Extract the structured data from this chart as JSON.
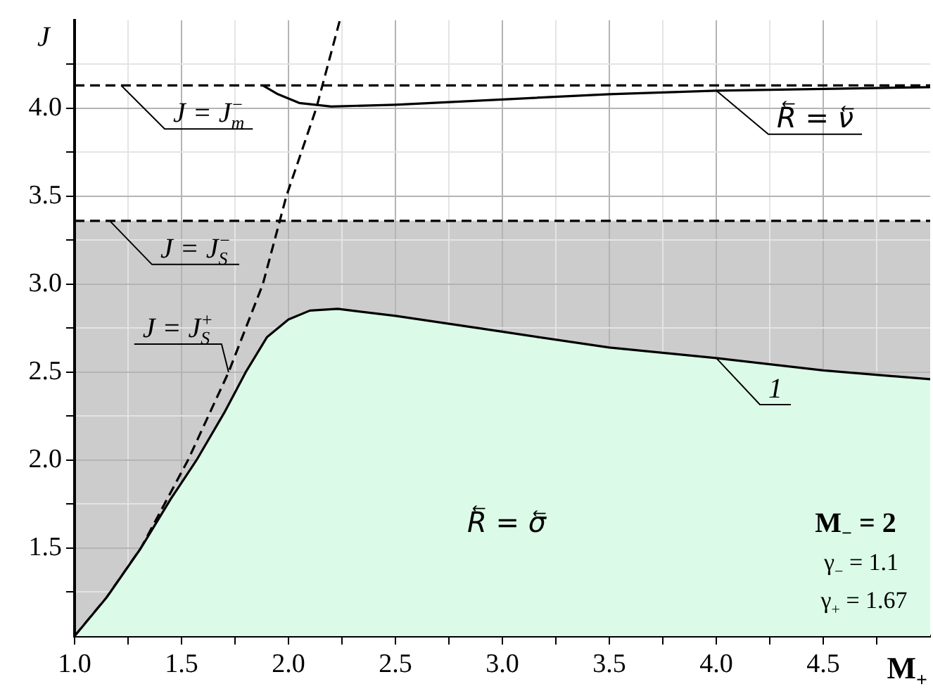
{
  "chart_data": {
    "type": "line",
    "xlabel": "M$_{+}$",
    "ylabel": "J",
    "xlim": [
      1.0,
      5.0
    ],
    "ylim": [
      1.0,
      4.5
    ],
    "xticks": [
      {
        "value": 1,
        "label": "1.0"
      },
      {
        "value": 1.25,
        "label": null
      },
      {
        "value": 1.5,
        "label": "1.5"
      },
      {
        "value": 1.75,
        "label": null
      },
      {
        "value": 2,
        "label": "2.0"
      },
      {
        "value": 2.25,
        "label": null
      },
      {
        "value": 2.5,
        "label": "2.5"
      },
      {
        "value": 2.75,
        "label": null
      },
      {
        "value": 3,
        "label": "3.0"
      },
      {
        "value": 3.25,
        "label": null
      },
      {
        "value": 3.5,
        "label": "3.5"
      },
      {
        "value": 3.75,
        "label": null
      },
      {
        "value": 4,
        "label": "4.0"
      },
      {
        "value": 4.25,
        "label": null
      },
      {
        "value": 4.5,
        "label": "4.5"
      },
      {
        "value": 4.75,
        "label": null
      }
    ],
    "yticks": [
      {
        "value": 1.25,
        "label": null
      },
      {
        "value": 1.5,
        "label": "1.5"
      },
      {
        "value": 1.75,
        "label": null
      },
      {
        "value": 2,
        "label": "2.0"
      },
      {
        "value": 2.25,
        "label": null
      },
      {
        "value": 2.5,
        "label": "2.5"
      },
      {
        "value": 2.75,
        "label": null
      },
      {
        "value": 3,
        "label": "3.0"
      },
      {
        "value": 3.25,
        "label": null
      },
      {
        "value": 3.5,
        "label": "3.5"
      },
      {
        "value": 3.75,
        "label": null
      },
      {
        "value": 4,
        "label": "4.0"
      },
      {
        "value": 4.25,
        "label": null
      }
    ],
    "grid": true,
    "legend": false,
    "series": [
      {
        "name": "1",
        "type": "area",
        "color": "#dbfbe8",
        "x": [
          1.0,
          1.15,
          1.31,
          1.45,
          1.57,
          1.7,
          1.8,
          1.9,
          2.0,
          2.1,
          2.23,
          2.5,
          2.89,
          3.0,
          3.5,
          4.0,
          4.5,
          5.0
        ],
        "values": [
          1.0,
          1.22,
          1.5,
          1.78,
          2.0,
          2.27,
          2.5,
          2.7,
          2.8,
          2.85,
          2.86,
          2.82,
          2.75,
          2.73,
          2.64,
          2.58,
          2.51,
          2.46
        ]
      },
      {
        "name": "J = J$_{S}$$^{+}$",
        "type": "line",
        "color": "#000000",
        "line_style": "dashed",
        "x": [
          1.0,
          1.15,
          1.31,
          1.53,
          1.72,
          1.88,
          1.99,
          2.13,
          2.24
        ],
        "values": [
          1.0,
          1.22,
          1.5,
          2.0,
          2.5,
          3.0,
          3.5,
          4.0,
          4.5
        ]
      },
      {
        "name": "R⃖ = ν⃖",
        "type": "line",
        "color": "#000000",
        "line_style": "solid",
        "x": [
          1.88,
          1.95,
          2.05,
          2.2,
          2.5,
          3.0,
          3.5,
          4.0,
          4.5,
          5.0
        ],
        "values": [
          4.13,
          4.08,
          4.03,
          4.01,
          4.02,
          4.05,
          4.08,
          4.1,
          4.11,
          4.12
        ]
      }
    ],
    "ref_lines": [
      {
        "axis": "y",
        "value": 4.13,
        "label": "J = J$_{m}$$^{−}$",
        "line_style": "dashed",
        "color": "#000000"
      },
      {
        "axis": "y",
        "value": 3.36,
        "label": "J = J$_{S}$$^{−}$",
        "line_style": "dashed",
        "color": "#000000"
      }
    ],
    "bands": [
      {
        "axis": "y",
        "from": 1.0,
        "to": 3.36,
        "color": "#cccccc"
      }
    ],
    "annotations": [
      "R⃖ = σ⃖",
      "M$_{−}$ = 2",
      "γ$_{−}$ = 1.1",
      "γ$_{+}$ = 1.67"
    ]
  }
}
